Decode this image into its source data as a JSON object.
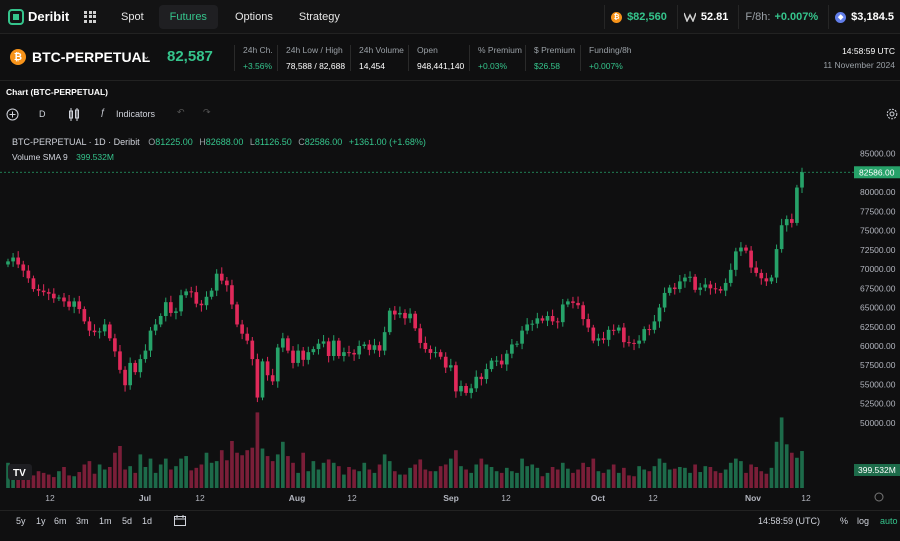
{
  "nav": {
    "logo": "Deribit",
    "tabs": [
      "Spot",
      "Futures",
      "Options",
      "Strategy"
    ],
    "active_tab": "Futures",
    "tickers": [
      {
        "icon": "bitcoin-icon",
        "value": "$82,560"
      },
      {
        "icon": "dvol-icon",
        "value": "52.81"
      },
      {
        "icon": "funding-icon",
        "label": "F/8h:",
        "value": "+0.007%"
      },
      {
        "icon": "ethereum-icon",
        "value": "$3,184.5"
      }
    ]
  },
  "instrument": {
    "name": "BTC-PERPETUAL",
    "price": "82,587",
    "stats": [
      {
        "label": "24h Ch.",
        "value": "+3.56%",
        "positive": true
      },
      {
        "label": "24h Low / High",
        "value": "78,588 / 82,688",
        "positive": false
      },
      {
        "label": "24h Volume",
        "value": "14,454",
        "positive": false
      },
      {
        "label": "Open",
        "value": "948,441,140",
        "positive": false
      },
      {
        "label": "% Premium",
        "value": "+0.03%",
        "positive": true
      },
      {
        "label": "$ Premium",
        "value": "$26.58",
        "positive": true
      },
      {
        "label": "Funding/8h",
        "value": "+0.007%",
        "positive": true
      }
    ],
    "time": "14:58:59 UTC",
    "date": "11 November 2024"
  },
  "chart_panel": {
    "title": "Chart (BTC-PERPETUAL)",
    "interval": "D",
    "indicators_label": "Indicators",
    "legend": {
      "symbol": "BTC-PERPETUAL · 1D · Deribit",
      "o": "81225.00",
      "h": "82688.00",
      "l": "81126.50",
      "c": "82586.00",
      "change": "+1361.00 (+1.68%)",
      "volume_label": "Volume SMA 9",
      "volume_value": "399.532M"
    },
    "colors": {
      "up": "#26a269",
      "down": "#e0295a",
      "up_vol": "#1d6b4a",
      "down_vol": "#7a1e38",
      "accent": "#35c48c"
    }
  },
  "chart_data": {
    "type": "candlestick",
    "y_ticks": [
      "85000.00",
      "82500.00",
      "80000.00",
      "77500.00",
      "75000.00",
      "72500.00",
      "70000.00",
      "67500.00",
      "65000.00",
      "62500.00",
      "60000.00",
      "57500.00",
      "55000.00",
      "52500.00",
      "50000.00"
    ],
    "ylim": [
      47000,
      86000
    ],
    "last_price_label": "82586.00",
    "last_price": 82586,
    "volume_label": "399.532M",
    "x_ticks": [
      "12",
      "Jul",
      "12",
      "Aug",
      "12",
      "Sep",
      "12",
      "Oct",
      "12",
      "Nov",
      "12"
    ],
    "closes": [
      71000,
      71500,
      70600,
      69800,
      68800,
      67400,
      67200,
      67000,
      66800,
      66200,
      66300,
      65800,
      65100,
      65800,
      64800,
      63200,
      62000,
      61800,
      61900,
      62800,
      61000,
      59300,
      56900,
      54900,
      57800,
      56600,
      58300,
      59400,
      62000,
      62800,
      63900,
      65700,
      64300,
      64500,
      66600,
      67100,
      67000,
      65500,
      65300,
      66400,
      67200,
      69400,
      68500,
      67900,
      65400,
      62800,
      61600,
      60700,
      58300,
      53300,
      58000,
      56200,
      55400,
      59800,
      61000,
      59400,
      57800,
      59400,
      58200,
      59200,
      59600,
      60300,
      60600,
      58700,
      60700,
      58700,
      59200,
      59100,
      58900,
      60000,
      60200,
      59500,
      60100,
      59400,
      61800,
      64600,
      64100,
      64300,
      63600,
      64200,
      62300,
      60400,
      59600,
      59100,
      59200,
      58600,
      57200,
      57500,
      54100,
      54800,
      53900,
      54500,
      56000,
      55700,
      57000,
      58100,
      58100,
      57600,
      59000,
      60200,
      60300,
      62000,
      62800,
      62900,
      63600,
      63300,
      63900,
      63200,
      63100,
      65400,
      65800,
      65600,
      65300,
      63500,
      62400,
      60700,
      61000,
      60800,
      62100,
      62000,
      62400,
      60500,
      60400,
      60300,
      60700,
      62200,
      62100,
      63200,
      65000,
      66900,
      67600,
      67400,
      68400,
      68900,
      69000,
      67300,
      67600,
      68000,
      67500,
      67400,
      67200,
      68200,
      69900,
      72300,
      72800,
      72400,
      70200,
      69500,
      68800,
      68400,
      68900,
      72600,
      75700,
      76500,
      76000,
      80600,
      82586
    ],
    "volumes": [
      0.3,
      0.12,
      0.18,
      0.28,
      0.22,
      0.15,
      0.2,
      0.18,
      0.16,
      0.13,
      0.2,
      0.25,
      0.15,
      0.14,
      0.19,
      0.28,
      0.32,
      0.17,
      0.28,
      0.22,
      0.25,
      0.42,
      0.5,
      0.22,
      0.26,
      0.18,
      0.4,
      0.25,
      0.35,
      0.18,
      0.28,
      0.35,
      0.22,
      0.26,
      0.35,
      0.38,
      0.21,
      0.24,
      0.28,
      0.42,
      0.3,
      0.32,
      0.45,
      0.33,
      0.56,
      0.42,
      0.39,
      0.45,
      0.48,
      0.9,
      0.47,
      0.38,
      0.32,
      0.4,
      0.55,
      0.38,
      0.3,
      0.18,
      0.42,
      0.2,
      0.32,
      0.22,
      0.3,
      0.34,
      0.3,
      0.26,
      0.16,
      0.25,
      0.22,
      0.2,
      0.3,
      0.22,
      0.18,
      0.28,
      0.4,
      0.32,
      0.2,
      0.16,
      0.16,
      0.24,
      0.28,
      0.34,
      0.22,
      0.2,
      0.2,
      0.26,
      0.28,
      0.35,
      0.45,
      0.26,
      0.22,
      0.18,
      0.28,
      0.35,
      0.28,
      0.25,
      0.2,
      0.18,
      0.24,
      0.2,
      0.18,
      0.35,
      0.26,
      0.28,
      0.24,
      0.14,
      0.18,
      0.25,
      0.22,
      0.3,
      0.23,
      0.18,
      0.22,
      0.3,
      0.25,
      0.35,
      0.2,
      0.18,
      0.22,
      0.28,
      0.18,
      0.24,
      0.15,
      0.14,
      0.26,
      0.22,
      0.2,
      0.26,
      0.35,
      0.3,
      0.22,
      0.23,
      0.25,
      0.24,
      0.18,
      0.28,
      0.19,
      0.26,
      0.25,
      0.2,
      0.18,
      0.22,
      0.3,
      0.35,
      0.32,
      0.18,
      0.28,
      0.25,
      0.2,
      0.17,
      0.24,
      0.55,
      0.84,
      0.52,
      0.42,
      0.36,
      0.44
    ]
  },
  "bottom_bar": {
    "ranges": [
      "5y",
      "1y",
      "6m",
      "3m",
      "1m",
      "5d",
      "1d"
    ],
    "time": "14:58:59 (UTC)",
    "percent": "%",
    "log": "log",
    "auto": "auto"
  }
}
